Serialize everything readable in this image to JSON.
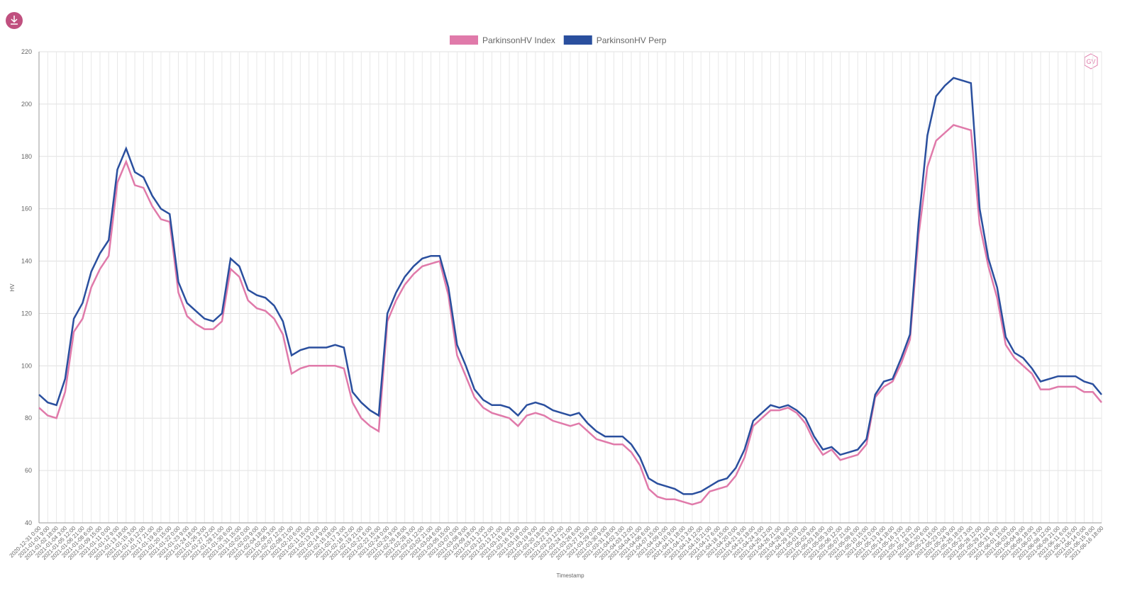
{
  "chart_data": {
    "type": "line",
    "xlabel": "Timestamp",
    "ylabel": "HV",
    "logo": "GV",
    "x": [
      "2020-12-31 0:00",
      "2021-01-01 9:00",
      "2021-01-02 18:00",
      "2021-01-04 3:00",
      "2021-01-05 12:00",
      "2021-01-06 21:00",
      "2021-01-08 6:00",
      "2021-01-09 15:00",
      "2021-01-11 0:00",
      "2021-01-12 9:00",
      "2021-01-13 18:00",
      "2021-01-15 3:00",
      "2021-01-16 12:00",
      "2021-01-17 21:00",
      "2021-01-19 6:00",
      "2021-01-20 15:00",
      "2021-01-22 0:00",
      "2021-01-23 9:00",
      "2021-01-24 18:00",
      "2021-01-26 3:00",
      "2021-01-27 12:00",
      "2021-01-28 21:00",
      "2021-01-30 6:00",
      "2021-01-31 15:00",
      "2021-02-02 0:00",
      "2021-02-03 9:00",
      "2021-02-04 18:00",
      "2021-02-06 3:00",
      "2021-02-07 12:00",
      "2021-02-08 21:00",
      "2021-02-10 6:00",
      "2021-02-11 15:00",
      "2021-02-13 0:00",
      "2021-02-14 9:00",
      "2021-02-15 18:00",
      "2021-02-17 3:00",
      "2021-02-18 12:00",
      "2021-02-19 21:00",
      "2021-02-21 6:00",
      "2021-02-22 15:00",
      "2021-02-24 0:00",
      "2021-02-25 9:00",
      "2021-02-26 18:00",
      "2021-02-28 3:00",
      "2021-03-01 12:00",
      "2021-03-02 21:00",
      "2021-03-04 6:00",
      "2021-03-05 15:00",
      "2021-03-07 0:00",
      "2021-03-08 9:00",
      "2021-03-09 18:00",
      "2021-03-11 3:00",
      "2021-03-12 12:00",
      "2021-03-13 21:00",
      "2021-03-15 6:00",
      "2021-03-16 15:00",
      "2021-03-18 0:00",
      "2021-03-19 9:00",
      "2021-03-20 18:00",
      "2021-03-22 3:00",
      "2021-03-23 12:00",
      "2021-03-24 21:00",
      "2021-03-26 6:00",
      "2021-03-27 15:00",
      "2021-03-29 0:00",
      "2021-03-30 9:00",
      "2021-03-31 18:00",
      "2021-04-02 3:00",
      "2021-04-03 12:00",
      "2021-04-04 21:00",
      "2021-04-06 6:00",
      "2021-04-07 15:00",
      "2021-04-09 0:00",
      "2021-04-10 9:00",
      "2021-04-11 18:00",
      "2021-04-13 3:00",
      "2021-04-14 12:00",
      "2021-04-15 21:00",
      "2021-04-17 6:00",
      "2021-04-18 15:00",
      "2021-04-20 0:00",
      "2021-04-21 9:00",
      "2021-04-22 18:00",
      "2021-04-24 3:00",
      "2021-04-25 12:00",
      "2021-04-26 21:00",
      "2021-04-28 6:00",
      "2021-04-29 15:00",
      "2021-05-01 0:00",
      "2021-05-02 9:00",
      "2021-05-03 18:00",
      "2021-05-05 3:00",
      "2021-05-06 12:00",
      "2021-05-07 21:00",
      "2021-05-09 6:00",
      "2021-05-10 15:00",
      "2021-05-12 0:00",
      "2021-05-13 9:00",
      "2021-05-14 18:00",
      "2021-05-16 3:00",
      "2021-05-17 12:00",
      "2021-05-18 21:00",
      "2021-05-20 6:00",
      "2021-05-21 15:00",
      "2021-05-23 0:00",
      "2021-05-24 9:00",
      "2021-05-25 18:00",
      "2021-05-27 3:00",
      "2021-05-28 12:00",
      "2021-05-29 21:00",
      "2021-05-31 6:00",
      "2021-06-01 15:00",
      "2021-06-03 0:00",
      "2021-06-04 9:00",
      "2021-06-05 18:00",
      "2021-06-07 3:00",
      "2021-06-08 12:00",
      "2021-06-09 21:00",
      "2021-06-11 6:00",
      "2021-06-12 15:00",
      "2021-06-14 0:00",
      "2021-06-15 9:00",
      "2021-06-16 18:00"
    ],
    "series": [
      {
        "name": "ParkinsonHV Index",
        "color": "#e07aaa",
        "values": [
          84,
          81,
          80,
          90,
          113,
          118,
          130,
          137,
          142,
          170,
          178,
          169,
          168,
          161,
          156,
          155,
          128,
          119,
          116,
          114,
          114,
          117,
          137,
          134,
          125,
          122,
          121,
          118,
          112,
          97,
          99,
          100,
          100,
          100,
          100,
          99,
          86,
          80,
          77,
          75,
          117,
          125,
          131,
          135,
          138,
          139,
          140,
          127,
          104,
          96,
          88,
          84,
          82,
          81,
          80,
          77,
          81,
          82,
          81,
          79,
          78,
          77,
          78,
          75,
          72,
          71,
          70,
          70,
          67,
          62,
          53,
          50,
          49,
          49,
          48,
          47,
          48,
          52,
          53,
          54,
          58,
          65,
          77,
          80,
          83,
          83,
          84,
          82,
          78,
          71,
          66,
          68,
          64,
          65,
          66,
          70,
          88,
          92,
          94,
          101,
          110,
          150,
          176,
          186,
          189,
          192,
          191,
          190,
          154,
          138,
          126,
          108,
          103,
          100,
          97,
          91,
          91,
          92,
          92,
          92,
          90,
          90,
          86
        ]
      },
      {
        "name": "ParkinsonHV Perp",
        "color": "#2a4f9e",
        "values": [
          89,
          86,
          85,
          95,
          118,
          124,
          136,
          143,
          148,
          175,
          183,
          174,
          172,
          165,
          160,
          158,
          132,
          124,
          121,
          118,
          117,
          120,
          141,
          138,
          129,
          127,
          126,
          123,
          117,
          104,
          106,
          107,
          107,
          107,
          108,
          107,
          90,
          86,
          83,
          81,
          120,
          128,
          134,
          138,
          141,
          142,
          142,
          130,
          108,
          100,
          91,
          87,
          85,
          85,
          84,
          81,
          85,
          86,
          85,
          83,
          82,
          81,
          82,
          78,
          75,
          73,
          73,
          73,
          70,
          65,
          57,
          55,
          54,
          53,
          51,
          51,
          52,
          54,
          56,
          57,
          61,
          68,
          79,
          82,
          85,
          84,
          85,
          83,
          80,
          73,
          68,
          69,
          66,
          67,
          68,
          72,
          89,
          94,
          95,
          103,
          112,
          155,
          188,
          203,
          207,
          210,
          209,
          208,
          160,
          141,
          130,
          111,
          105,
          103,
          99,
          94,
          95,
          96,
          96,
          96,
          94,
          93,
          89
        ]
      }
    ],
    "ylim": [
      40,
      220
    ],
    "yticks": [
      40,
      60,
      80,
      100,
      120,
      140,
      160,
      180,
      200,
      220
    ],
    "grid": true
  }
}
